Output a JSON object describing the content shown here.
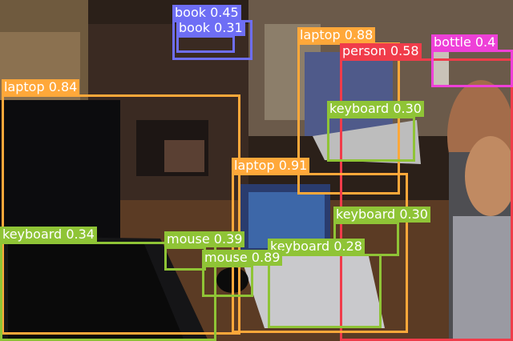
{
  "image": {
    "description_none": "",
    "detections": [
      {
        "label": "book",
        "score": "0.45",
        "color": "#6e6ef5"
      },
      {
        "label": "book",
        "score": "0.31",
        "color": "#6e6ef5"
      },
      {
        "label": "laptop",
        "score": "0.88",
        "color": "#ffa83a"
      },
      {
        "label": "person",
        "score": "0.58",
        "color": "#f03c4a"
      },
      {
        "label": "bottle",
        "score": "0.4",
        "color": "#ee40d8"
      },
      {
        "label": "laptop",
        "score": "0.84",
        "color": "#ffa83a"
      },
      {
        "label": "keyboard",
        "score": "0.30",
        "color": "#8fc436"
      },
      {
        "label": "laptop",
        "score": "0.91",
        "color": "#ffa83a"
      },
      {
        "label": "keyboard",
        "score": "0.30",
        "color": "#8fc436"
      },
      {
        "label": "keyboard",
        "score": "0.34",
        "color": "#8fc436"
      },
      {
        "label": "mouse",
        "score": "0.39",
        "color": "#8fc436"
      },
      {
        "label": "keyboard",
        "score": "0.28",
        "color": "#8fc436"
      },
      {
        "label": "mouse",
        "score": "0.89",
        "color": "#8fc436"
      }
    ]
  }
}
